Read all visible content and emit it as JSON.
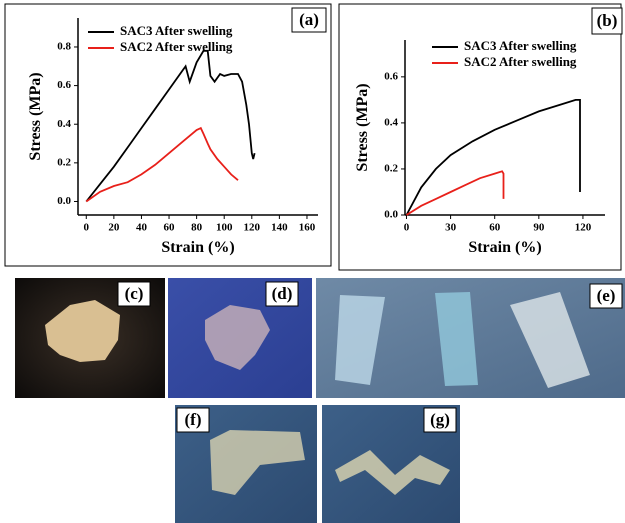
{
  "chart_data": [
    {
      "type": "line",
      "panel_label": "(a)",
      "x_label": "Strain (%)",
      "y_label": "Stress (MPa)",
      "xlim": [
        -6,
        168
      ],
      "xticks": [
        0,
        20,
        40,
        60,
        80,
        100,
        120,
        140,
        160
      ],
      "ylim": [
        -0.07,
        0.95
      ],
      "yticks": [
        {
          "value": 0,
          "label": "0.0"
        },
        0.2,
        0.4,
        0.6,
        0.8
      ],
      "legend": "upper left",
      "series": [
        {
          "name": "SAC3 After swelling",
          "color": "#000000",
          "x": [
            0,
            10,
            20,
            30,
            40,
            50,
            60,
            70,
            72,
            75,
            80,
            85,
            88,
            90,
            93,
            97,
            100,
            105,
            110,
            113,
            116,
            118,
            120,
            121,
            122
          ],
          "values": [
            0,
            0.09,
            0.18,
            0.28,
            0.38,
            0.48,
            0.58,
            0.68,
            0.7,
            0.62,
            0.72,
            0.78,
            0.78,
            0.65,
            0.62,
            0.66,
            0.65,
            0.66,
            0.66,
            0.62,
            0.5,
            0.4,
            0.25,
            0.22,
            0.25
          ]
        },
        {
          "name": "SAC2 After swelling",
          "color": "#e8201a",
          "x": [
            0,
            10,
            20,
            30,
            40,
            50,
            60,
            70,
            80,
            83,
            85,
            88,
            90,
            95,
            100,
            105,
            110
          ],
          "values": [
            0,
            0.05,
            0.08,
            0.1,
            0.14,
            0.19,
            0.25,
            0.31,
            0.37,
            0.38,
            0.35,
            0.3,
            0.27,
            0.22,
            0.18,
            0.14,
            0.11
          ]
        }
      ]
    },
    {
      "type": "line",
      "panel_label": "(b)",
      "x_label": "Strain (%)",
      "y_label": "Stress (MPa)",
      "xlim": [
        -1,
        135
      ],
      "xticks": [
        0,
        30,
        60,
        90,
        120
      ],
      "ylim": [
        0,
        0.76
      ],
      "yticks": [
        {
          "value": 0,
          "label": "0.0"
        },
        0.2,
        0.4,
        0.6
      ],
      "legend": "upper left",
      "series": [
        {
          "name": "SAC3 After swelling",
          "color": "#000000",
          "x": [
            0,
            10,
            20,
            30,
            45,
            60,
            75,
            90,
            105,
            115,
            117,
            118,
            118
          ],
          "values": [
            0,
            0.12,
            0.2,
            0.26,
            0.32,
            0.37,
            0.41,
            0.45,
            0.48,
            0.5,
            0.5,
            0.5,
            0.1
          ]
        },
        {
          "name": "SAC2 After swelling",
          "color": "#e8201a",
          "x": [
            0,
            10,
            20,
            30,
            40,
            50,
            60,
            65,
            66,
            66
          ],
          "values": [
            0,
            0.04,
            0.07,
            0.1,
            0.13,
            0.16,
            0.18,
            0.19,
            0.18,
            0.07
          ]
        }
      ]
    }
  ],
  "photos": [
    {
      "label": "(c)"
    },
    {
      "label": "(d)"
    },
    {
      "label": "(e)"
    },
    {
      "label": "(f)"
    },
    {
      "label": "(g)"
    }
  ]
}
